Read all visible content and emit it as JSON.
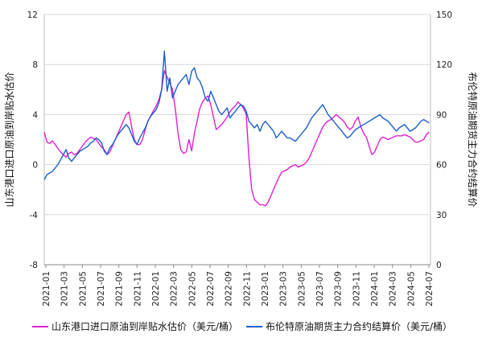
{
  "chart_data": {
    "type": "line",
    "title": "",
    "xlabel": "",
    "ylabel_left": "山东港口进口原油到岸贴水估价",
    "ylabel_right": "布伦特原油期货主力合约结算价",
    "ylim_left": [
      -8,
      12
    ],
    "yticks_left": [
      -8,
      -4,
      0,
      4,
      8,
      12
    ],
    "ylim_right": [
      0,
      150
    ],
    "yticks_right": [
      0,
      30,
      60,
      90,
      120,
      150
    ],
    "x_categories": [
      "2021-01",
      "2021-03",
      "2021-05",
      "2021-07",
      "2021-09",
      "2021-11",
      "2022-01",
      "2022-03",
      "2022-05",
      "2022-07",
      "2022-09",
      "2022-11",
      "2023-01",
      "2023-03",
      "2023-05",
      "2023-07",
      "2023-09",
      "2023-11",
      "2024-01",
      "2024-03",
      "2024-05",
      "2024-07"
    ],
    "grid": true,
    "legend_position": "bottom",
    "series": [
      {
        "name": "山东港口进口原油到岸贴水估价（美元/桶）",
        "axis": "left",
        "color": "#e020d0",
        "points": [
          [
            0,
            2.6
          ],
          [
            0.2,
            1.8
          ],
          [
            0.4,
            1.7
          ],
          [
            0.6,
            1.9
          ],
          [
            0.8,
            1.6
          ],
          [
            1,
            1.3
          ],
          [
            1.2,
            1.0
          ],
          [
            1.4,
            0.8
          ],
          [
            1.6,
            0.6
          ],
          [
            1.8,
            0.9
          ],
          [
            2,
            1.0
          ],
          [
            2.2,
            0.8
          ],
          [
            2.4,
            0.9
          ],
          [
            2.6,
            1.2
          ],
          [
            2.8,
            1.5
          ],
          [
            3,
            1.8
          ],
          [
            3.2,
            2.0
          ],
          [
            3.4,
            2.2
          ],
          [
            3.6,
            2.1
          ],
          [
            3.8,
            2.0
          ],
          [
            4,
            1.7
          ],
          [
            4.2,
            1.4
          ],
          [
            4.4,
            1.2
          ],
          [
            4.6,
            0.8
          ],
          [
            4.8,
            1.0
          ],
          [
            5,
            1.5
          ],
          [
            5.2,
            2.0
          ],
          [
            5.4,
            2.5
          ],
          [
            5.6,
            3.0
          ],
          [
            5.8,
            3.5
          ],
          [
            6,
            4.0
          ],
          [
            6.2,
            4.2
          ],
          [
            6.4,
            3.0
          ],
          [
            6.6,
            2.0
          ],
          [
            6.8,
            1.6
          ],
          [
            7,
            1.6
          ],
          [
            7.2,
            2.0
          ],
          [
            7.4,
            2.8
          ],
          [
            7.6,
            3.5
          ],
          [
            7.8,
            3.9
          ],
          [
            8,
            4.3
          ],
          [
            8.2,
            4.7
          ],
          [
            8.4,
            5.2
          ],
          [
            8.6,
            6.0
          ],
          [
            8.8,
            7.5
          ],
          [
            9,
            7.0
          ],
          [
            9.2,
            6.5
          ],
          [
            9.4,
            6.0
          ],
          [
            9.6,
            4.5
          ],
          [
            9.8,
            2.5
          ],
          [
            10,
            1.2
          ],
          [
            10.2,
            0.9
          ],
          [
            10.4,
            1.0
          ],
          [
            10.6,
            2.0
          ],
          [
            10.8,
            1.1
          ],
          [
            11,
            2.5
          ],
          [
            11.2,
            3.5
          ],
          [
            11.4,
            4.5
          ],
          [
            11.6,
            5.0
          ],
          [
            11.8,
            5.3
          ],
          [
            12,
            5.5
          ],
          [
            12.2,
            4.8
          ],
          [
            12.4,
            3.8
          ],
          [
            12.6,
            2.8
          ],
          [
            12.8,
            3.0
          ],
          [
            13,
            3.2
          ],
          [
            13.2,
            3.5
          ],
          [
            13.4,
            3.8
          ],
          [
            13.6,
            4.2
          ],
          [
            13.8,
            4.5
          ],
          [
            14,
            4.7
          ],
          [
            14.2,
            5.0
          ],
          [
            14.4,
            4.8
          ],
          [
            14.6,
            4.5
          ],
          [
            14.8,
            4.0
          ],
          [
            15,
            0.5
          ],
          [
            15.2,
            -2.0
          ],
          [
            15.4,
            -2.8
          ],
          [
            15.6,
            -3.0
          ],
          [
            15.8,
            -3.2
          ],
          [
            16,
            -3.2
          ],
          [
            16.2,
            -3.3
          ],
          [
            16.4,
            -3.0
          ],
          [
            16.6,
            -2.5
          ],
          [
            16.8,
            -2.0
          ],
          [
            17,
            -1.5
          ],
          [
            17.2,
            -1.0
          ],
          [
            17.4,
            -0.6
          ],
          [
            17.6,
            -0.5
          ],
          [
            17.8,
            -0.4
          ],
          [
            18,
            -0.2
          ],
          [
            18.2,
            -0.1
          ],
          [
            18.4,
            0.0
          ],
          [
            18.6,
            -0.2
          ],
          [
            18.8,
            -0.1
          ],
          [
            19,
            0.0
          ],
          [
            19.2,
            0.2
          ],
          [
            19.4,
            0.5
          ],
          [
            19.6,
            1.0
          ],
          [
            19.8,
            1.5
          ],
          [
            20,
            2.0
          ],
          [
            20.2,
            2.5
          ],
          [
            20.4,
            3.0
          ],
          [
            20.6,
            3.3
          ],
          [
            20.8,
            3.5
          ],
          [
            21,
            3.6
          ],
          [
            21.2,
            3.8
          ],
          [
            21.4,
            4.0
          ],
          [
            21.6,
            3.8
          ],
          [
            21.8,
            3.6
          ],
          [
            22,
            3.4
          ],
          [
            22.2,
            3.0
          ],
          [
            22.4,
            2.8
          ],
          [
            22.6,
            3.0
          ],
          [
            22.8,
            3.5
          ],
          [
            23,
            3.8
          ],
          [
            23.2,
            3.0
          ],
          [
            23.4,
            2.5
          ],
          [
            23.6,
            2.2
          ],
          [
            23.8,
            1.5
          ],
          [
            24,
            0.8
          ],
          [
            24.2,
            1.0
          ],
          [
            24.4,
            1.5
          ],
          [
            24.6,
            2.0
          ],
          [
            24.8,
            2.2
          ],
          [
            25,
            2.1
          ],
          [
            25.2,
            2.0
          ],
          [
            25.4,
            2.1
          ],
          [
            25.6,
            2.2
          ],
          [
            25.8,
            2.3
          ],
          [
            26,
            2.3
          ],
          [
            26.2,
            2.3
          ],
          [
            26.4,
            2.4
          ],
          [
            26.6,
            2.3
          ],
          [
            26.8,
            2.2
          ],
          [
            27,
            2.0
          ],
          [
            27.2,
            1.8
          ],
          [
            27.4,
            1.8
          ],
          [
            27.6,
            1.9
          ],
          [
            27.8,
            2.0
          ],
          [
            28,
            2.4
          ],
          [
            28.2,
            2.6
          ]
        ]
      },
      {
        "name": "布伦特原油期货主力合约结算价（美元/桶）",
        "axis": "right",
        "color": "#1b5fc9",
        "points": [
          [
            0,
            51
          ],
          [
            0.2,
            54
          ],
          [
            0.4,
            55
          ],
          [
            0.6,
            56
          ],
          [
            0.8,
            58
          ],
          [
            1,
            60
          ],
          [
            1.2,
            63
          ],
          [
            1.4,
            66
          ],
          [
            1.6,
            69
          ],
          [
            1.8,
            64
          ],
          [
            2,
            62
          ],
          [
            2.2,
            64
          ],
          [
            2.4,
            66
          ],
          [
            2.6,
            68
          ],
          [
            2.8,
            69
          ],
          [
            3,
            70
          ],
          [
            3.2,
            71
          ],
          [
            3.4,
            73
          ],
          [
            3.6,
            74
          ],
          [
            3.8,
            76
          ],
          [
            4,
            75
          ],
          [
            4.2,
            73
          ],
          [
            4.4,
            68
          ],
          [
            4.6,
            66
          ],
          [
            4.8,
            70
          ],
          [
            5,
            72
          ],
          [
            5.2,
            75
          ],
          [
            5.4,
            78
          ],
          [
            5.6,
            80
          ],
          [
            5.8,
            82
          ],
          [
            6,
            84
          ],
          [
            6.2,
            82
          ],
          [
            6.4,
            78
          ],
          [
            6.6,
            74
          ],
          [
            6.8,
            72
          ],
          [
            7,
            76
          ],
          [
            7.2,
            79
          ],
          [
            7.4,
            82
          ],
          [
            7.6,
            86
          ],
          [
            7.8,
            89
          ],
          [
            8,
            91
          ],
          [
            8.2,
            93
          ],
          [
            8.4,
            97
          ],
          [
            8.6,
            105
          ],
          [
            8.8,
            128
          ],
          [
            9,
            104
          ],
          [
            9.2,
            112
          ],
          [
            9.4,
            100
          ],
          [
            9.6,
            104
          ],
          [
            9.8,
            108
          ],
          [
            10,
            110
          ],
          [
            10.2,
            112
          ],
          [
            10.4,
            114
          ],
          [
            10.6,
            108
          ],
          [
            10.8,
            116
          ],
          [
            11,
            118
          ],
          [
            11.2,
            112
          ],
          [
            11.4,
            110
          ],
          [
            11.6,
            106
          ],
          [
            11.8,
            100
          ],
          [
            12,
            98
          ],
          [
            12.2,
            104
          ],
          [
            12.4,
            100
          ],
          [
            12.6,
            96
          ],
          [
            12.8,
            92
          ],
          [
            13,
            90
          ],
          [
            13.2,
            92
          ],
          [
            13.4,
            94
          ],
          [
            13.6,
            88
          ],
          [
            13.8,
            90
          ],
          [
            14,
            92
          ],
          [
            14.2,
            94
          ],
          [
            14.4,
            96
          ],
          [
            14.6,
            95
          ],
          [
            14.8,
            92
          ],
          [
            15,
            86
          ],
          [
            15.2,
            84
          ],
          [
            15.4,
            82
          ],
          [
            15.6,
            84
          ],
          [
            15.8,
            80
          ],
          [
            16,
            84
          ],
          [
            16.2,
            86
          ],
          [
            16.4,
            84
          ],
          [
            16.6,
            82
          ],
          [
            16.8,
            80
          ],
          [
            17,
            76
          ],
          [
            17.2,
            78
          ],
          [
            17.4,
            80
          ],
          [
            17.6,
            78
          ],
          [
            17.8,
            76
          ],
          [
            18,
            76
          ],
          [
            18.2,
            75
          ],
          [
            18.4,
            74
          ],
          [
            18.6,
            76
          ],
          [
            18.8,
            78
          ],
          [
            19,
            80
          ],
          [
            19.2,
            82
          ],
          [
            19.4,
            85
          ],
          [
            19.6,
            88
          ],
          [
            19.8,
            90
          ],
          [
            20,
            92
          ],
          [
            20.2,
            94
          ],
          [
            20.4,
            96
          ],
          [
            20.6,
            93
          ],
          [
            20.8,
            90
          ],
          [
            21,
            88
          ],
          [
            21.2,
            86
          ],
          [
            21.4,
            84
          ],
          [
            21.6,
            82
          ],
          [
            21.8,
            80
          ],
          [
            22,
            78
          ],
          [
            22.2,
            76
          ],
          [
            22.4,
            77
          ],
          [
            22.6,
            79
          ],
          [
            22.8,
            81
          ],
          [
            23,
            82
          ],
          [
            23.2,
            83
          ],
          [
            23.4,
            84
          ],
          [
            23.6,
            85
          ],
          [
            23.8,
            86
          ],
          [
            24,
            87
          ],
          [
            24.2,
            88
          ],
          [
            24.4,
            89
          ],
          [
            24.6,
            90
          ],
          [
            24.8,
            88
          ],
          [
            25,
            87
          ],
          [
            25.2,
            86
          ],
          [
            25.4,
            84
          ],
          [
            25.6,
            82
          ],
          [
            25.8,
            80
          ],
          [
            26,
            82
          ],
          [
            26.2,
            83
          ],
          [
            26.4,
            84
          ],
          [
            26.6,
            82
          ],
          [
            26.8,
            80
          ],
          [
            27,
            81
          ],
          [
            27.2,
            82
          ],
          [
            27.4,
            84
          ],
          [
            27.6,
            86
          ],
          [
            27.8,
            87
          ],
          [
            28,
            86
          ],
          [
            28.2,
            85
          ]
        ]
      }
    ]
  }
}
